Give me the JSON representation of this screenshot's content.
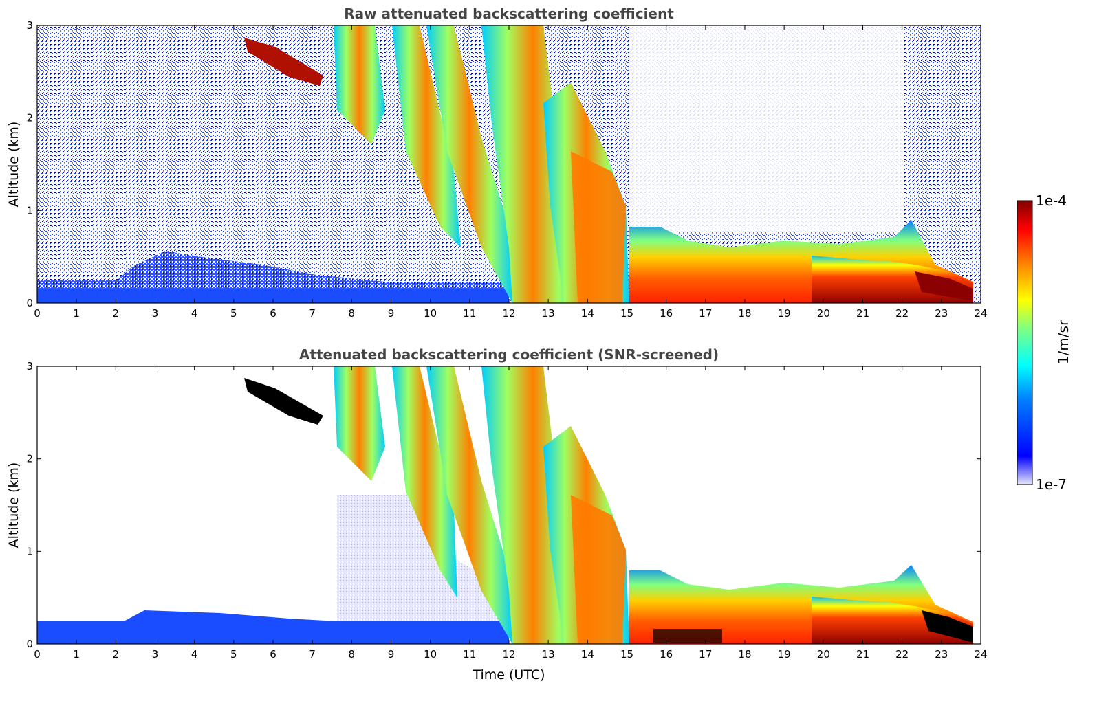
{
  "chart_data": [
    {
      "type": "heatmap",
      "title": "Raw attenuated backscattering coefficient",
      "xlabel": "",
      "ylabel": "Altitude (km)",
      "xlim": [
        0,
        24
      ],
      "ylim": [
        0,
        3
      ],
      "x_ticks": [
        "0",
        "1",
        "2",
        "3",
        "4",
        "5",
        "6",
        "7",
        "8",
        "9",
        "10",
        "11",
        "12",
        "13",
        "14",
        "15",
        "16",
        "17",
        "18",
        "19",
        "20",
        "21",
        "22",
        "23",
        "24"
      ],
      "y_ticks": [
        "0",
        "1",
        "2",
        "3"
      ],
      "grid": false,
      "screened": false
    },
    {
      "type": "heatmap",
      "title": "Attenuated backscattering coefficient (SNR-screened)",
      "xlabel": "Time (UTC)",
      "ylabel": "Altitude (km)",
      "xlim": [
        0,
        24
      ],
      "ylim": [
        0,
        3
      ],
      "x_ticks": [
        "0",
        "1",
        "2",
        "3",
        "4",
        "5",
        "6",
        "7",
        "8",
        "9",
        "10",
        "11",
        "12",
        "13",
        "14",
        "15",
        "16",
        "17",
        "18",
        "19",
        "20",
        "21",
        "22",
        "23",
        "24"
      ],
      "y_ticks": [
        "0",
        "1",
        "2",
        "3"
      ],
      "grid": false,
      "screened": true
    }
  ],
  "colorbar": {
    "label": "1/m/sr",
    "max_label": "1e-4",
    "min_label": "1e-7",
    "scale": "log",
    "colormap": "jet",
    "colors": [
      "#e6e6fa",
      "#0000ff",
      "#0080ff",
      "#00ffff",
      "#80ff80",
      "#ffff00",
      "#ff8000",
      "#ff0000",
      "#800000"
    ]
  }
}
